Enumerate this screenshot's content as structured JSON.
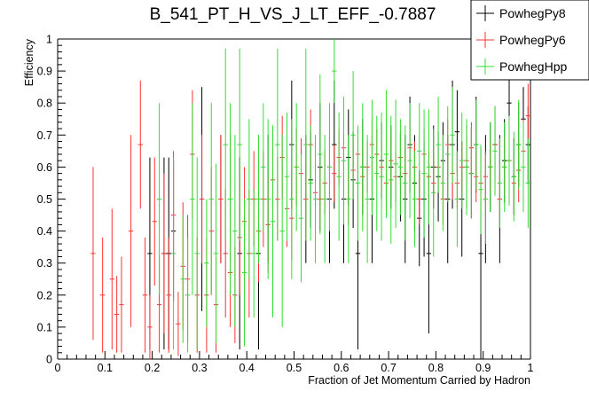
{
  "chart_data": {
    "type": "scatter",
    "title": "B_541_PT_H_VS_J_LT_EFF_-0.7887",
    "xlabel": "Fraction of Jet Momentum Carried by Hadron",
    "ylabel": "Efficiency",
    "xlim": [
      0,
      1
    ],
    "ylim": [
      0,
      1
    ],
    "x_ticks": [
      "0",
      "0.1",
      "0.2",
      "0.3",
      "0.4",
      "0.5",
      "0.6",
      "0.7",
      "0.8",
      "0.9",
      "1"
    ],
    "y_ticks": [
      "0",
      "0.1",
      "0.2",
      "0.3",
      "0.4",
      "0.5",
      "0.6",
      "0.7",
      "0.8",
      "0.9",
      "1"
    ],
    "grid": false,
    "legend_position": "top-right",
    "series": [
      {
        "name": "PowhegPy8",
        "color": "#000000",
        "x": [
          0.195,
          0.225,
          0.235,
          0.245,
          0.305,
          0.345,
          0.365,
          0.385,
          0.425,
          0.445,
          0.495,
          0.525,
          0.535,
          0.555,
          0.575,
          0.585,
          0.605,
          0.615,
          0.625,
          0.635,
          0.645,
          0.665,
          0.685,
          0.705,
          0.725,
          0.735,
          0.745,
          0.755,
          0.765,
          0.775,
          0.785,
          0.795,
          0.805,
          0.815,
          0.825,
          0.835,
          0.845,
          0.855,
          0.865,
          0.875,
          0.885,
          0.895,
          0.905,
          0.915,
          0.925,
          0.935,
          0.945,
          0.955,
          0.965,
          0.975,
          0.985,
          0.995
        ],
        "y": [
          0.33,
          0.33,
          0.33,
          0.4,
          0.5,
          0.5,
          0.5,
          0.33,
          0.33,
          0.5,
          0.67,
          0.5,
          0.56,
          0.6,
          0.5,
          0.67,
          0.5,
          0.63,
          0.56,
          0.33,
          0.6,
          0.5,
          0.62,
          0.6,
          0.57,
          0.5,
          0.67,
          0.55,
          0.44,
          0.5,
          0.33,
          0.6,
          0.57,
          0.62,
          0.5,
          0.67,
          0.71,
          0.5,
          0.6,
          0.58,
          0.67,
          0.33,
          0.5,
          0.6,
          0.67,
          0.5,
          0.62,
          0.8,
          0.57,
          0.67,
          0.75,
          0.67
        ],
        "err": [
          0.3,
          0.3,
          0.3,
          0.22,
          0.35,
          0.2,
          0.2,
          0.3,
          0.3,
          0.2,
          0.2,
          0.2,
          0.15,
          0.2,
          0.2,
          0.2,
          0.2,
          0.15,
          0.15,
          0.3,
          0.15,
          0.2,
          0.12,
          0.13,
          0.14,
          0.2,
          0.15,
          0.15,
          0.15,
          0.18,
          0.25,
          0.13,
          0.14,
          0.12,
          0.2,
          0.2,
          0.13,
          0.18,
          0.13,
          0.14,
          0.15,
          0.33,
          0.2,
          0.14,
          0.12,
          0.2,
          0.13,
          0.12,
          0.12,
          0.13,
          0.1,
          0.12
        ]
      },
      {
        "name": "PowhegPy6",
        "color": "#ff3333",
        "x": [
          0.075,
          0.095,
          0.115,
          0.125,
          0.135,
          0.155,
          0.175,
          0.185,
          0.195,
          0.205,
          0.215,
          0.225,
          0.235,
          0.245,
          0.255,
          0.265,
          0.275,
          0.285,
          0.295,
          0.305,
          0.315,
          0.325,
          0.335,
          0.345,
          0.355,
          0.365,
          0.375,
          0.385,
          0.395,
          0.405,
          0.415,
          0.425,
          0.435,
          0.445,
          0.455,
          0.465,
          0.475,
          0.485,
          0.495,
          0.505,
          0.515,
          0.525,
          0.535,
          0.545,
          0.555,
          0.565,
          0.575,
          0.585,
          0.595,
          0.605,
          0.615,
          0.625,
          0.635,
          0.645,
          0.655,
          0.665,
          0.675,
          0.685,
          0.695,
          0.705,
          0.715,
          0.725,
          0.735,
          0.745,
          0.755,
          0.765,
          0.775,
          0.785,
          0.795,
          0.805,
          0.815,
          0.825,
          0.835,
          0.845,
          0.855,
          0.865,
          0.875,
          0.885,
          0.895,
          0.905,
          0.915,
          0.925,
          0.935,
          0.945,
          0.955,
          0.965,
          0.975,
          0.985,
          0.995
        ],
        "y": [
          0.33,
          0.2,
          0.25,
          0.14,
          0.17,
          0.4,
          0.67,
          0.2,
          0.1,
          0.43,
          0.17,
          0.33,
          0.2,
          0.45,
          0.11,
          0.29,
          0.25,
          0.64,
          0.2,
          0.5,
          0.2,
          0.4,
          0.17,
          0.5,
          0.33,
          0.27,
          0.2,
          0.38,
          0.43,
          0.33,
          0.5,
          0.4,
          0.5,
          0.42,
          0.56,
          0.5,
          0.63,
          0.47,
          0.44,
          0.6,
          0.58,
          0.5,
          0.67,
          0.52,
          0.5,
          0.55,
          0.6,
          0.58,
          0.63,
          0.66,
          0.5,
          0.59,
          0.64,
          0.57,
          0.6,
          0.67,
          0.64,
          0.6,
          0.55,
          0.62,
          0.57,
          0.63,
          0.58,
          0.66,
          0.6,
          0.5,
          0.64,
          0.57,
          0.55,
          0.6,
          0.5,
          0.67,
          0.58,
          0.55,
          0.6,
          0.62,
          0.66,
          0.57,
          0.55,
          0.57,
          0.6,
          0.67,
          0.5,
          0.6,
          0.62,
          0.55,
          0.59,
          0.65,
          0.76
        ],
        "err": [
          0.27,
          0.18,
          0.22,
          0.12,
          0.15,
          0.3,
          0.2,
          0.18,
          0.1,
          0.2,
          0.15,
          0.25,
          0.18,
          0.2,
          0.1,
          0.2,
          0.2,
          0.2,
          0.18,
          0.2,
          0.18,
          0.2,
          0.15,
          0.2,
          0.2,
          0.17,
          0.15,
          0.18,
          0.17,
          0.2,
          0.15,
          0.16,
          0.15,
          0.15,
          0.12,
          0.13,
          0.13,
          0.12,
          0.13,
          0.12,
          0.11,
          0.12,
          0.11,
          0.1,
          0.1,
          0.1,
          0.1,
          0.09,
          0.09,
          0.09,
          0.08,
          0.08,
          0.08,
          0.09,
          0.08,
          0.08,
          0.08,
          0.08,
          0.08,
          0.08,
          0.08,
          0.08,
          0.08,
          0.08,
          0.08,
          0.08,
          0.08,
          0.08,
          0.08,
          0.08,
          0.08,
          0.08,
          0.08,
          0.08,
          0.08,
          0.08,
          0.08,
          0.08,
          0.08,
          0.08,
          0.08,
          0.08,
          0.08,
          0.09,
          0.09,
          0.09,
          0.1,
          0.1,
          0.1
        ]
      },
      {
        "name": "PowhegHpp",
        "color": "#33dd33",
        "x": [
          0.215,
          0.245,
          0.265,
          0.275,
          0.285,
          0.295,
          0.315,
          0.325,
          0.335,
          0.355,
          0.365,
          0.375,
          0.385,
          0.395,
          0.405,
          0.415,
          0.425,
          0.435,
          0.445,
          0.455,
          0.465,
          0.475,
          0.485,
          0.495,
          0.505,
          0.515,
          0.525,
          0.535,
          0.545,
          0.555,
          0.565,
          0.575,
          0.585,
          0.595,
          0.605,
          0.615,
          0.625,
          0.635,
          0.645,
          0.655,
          0.665,
          0.675,
          0.685,
          0.695,
          0.705,
          0.715,
          0.725,
          0.735,
          0.745,
          0.755,
          0.765,
          0.775,
          0.785,
          0.795,
          0.805,
          0.815,
          0.825,
          0.835,
          0.845,
          0.855,
          0.865,
          0.875,
          0.885,
          0.895,
          0.905,
          0.915,
          0.925,
          0.935,
          0.945,
          0.955,
          0.965,
          0.975,
          0.985,
          0.995
        ],
        "y": [
          0.5,
          0.33,
          0.25,
          0.2,
          0.5,
          0.33,
          0.3,
          0.5,
          0.33,
          0.67,
          0.5,
          0.4,
          0.67,
          0.27,
          0.5,
          0.33,
          0.5,
          0.6,
          0.5,
          0.43,
          0.67,
          0.4,
          0.57,
          0.5,
          0.6,
          0.44,
          0.67,
          0.55,
          0.5,
          0.64,
          0.5,
          0.6,
          0.9,
          0.57,
          0.62,
          0.5,
          0.7,
          0.55,
          0.6,
          0.5,
          0.63,
          0.58,
          0.57,
          0.64,
          0.56,
          0.61,
          0.6,
          0.55,
          0.62,
          0.5,
          0.65,
          0.58,
          0.6,
          0.52,
          0.67,
          0.55,
          0.64,
          0.7,
          0.5,
          0.62,
          0.6,
          0.58,
          0.67,
          0.53,
          0.5,
          0.6,
          0.65,
          0.55,
          0.6,
          0.62,
          0.57,
          0.67,
          0.6,
          0.55
        ],
        "err": [
          0.3,
          0.3,
          0.2,
          0.18,
          0.3,
          0.3,
          0.2,
          0.3,
          0.28,
          0.3,
          0.3,
          0.3,
          0.3,
          0.23,
          0.25,
          0.2,
          0.2,
          0.2,
          0.25,
          0.3,
          0.3,
          0.3,
          0.2,
          0.25,
          0.2,
          0.2,
          0.3,
          0.18,
          0.2,
          0.25,
          0.2,
          0.2,
          0.1,
          0.2,
          0.2,
          0.2,
          0.2,
          0.18,
          0.2,
          0.2,
          0.18,
          0.18,
          0.2,
          0.2,
          0.2,
          0.2,
          0.15,
          0.18,
          0.18,
          0.15,
          0.15,
          0.2,
          0.18,
          0.2,
          0.15,
          0.15,
          0.15,
          0.15,
          0.15,
          0.15,
          0.15,
          0.14,
          0.14,
          0.14,
          0.14,
          0.14,
          0.14,
          0.14,
          0.14,
          0.14,
          0.14,
          0.14,
          0.14,
          0.14
        ]
      }
    ]
  }
}
